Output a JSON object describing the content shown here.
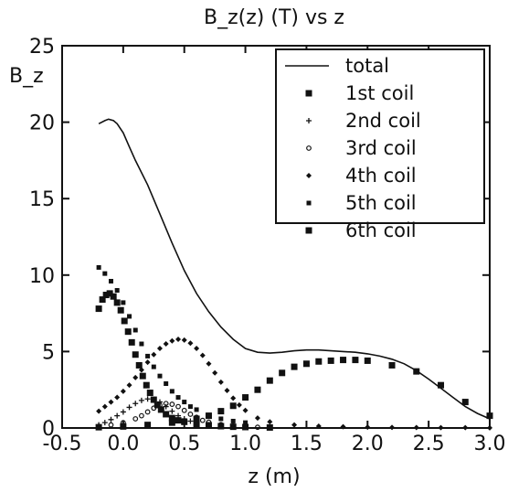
{
  "chart_data": {
    "type": "line",
    "title": "B_z(z) (T) vs z",
    "xlabel": "z (m)",
    "ylabel": "B_z",
    "xlim": [
      -0.5,
      3.0
    ],
    "ylim": [
      0,
      25
    ],
    "xticks": [
      "-0.5",
      "0.0",
      "0.5",
      "1.0",
      "1.5",
      "2.0",
      "2.5",
      "3.0"
    ],
    "yticks": [
      "0",
      "5",
      "10",
      "15",
      "20",
      "25"
    ],
    "xtick_values": [
      -0.5,
      0.0,
      0.5,
      1.0,
      1.5,
      2.0,
      2.5,
      3.0
    ],
    "ytick_values": [
      0,
      5,
      10,
      15,
      20,
      25
    ],
    "legend_position": "top-right",
    "grid": false,
    "series": [
      {
        "name": "total",
        "marker": "line",
        "x": [
          -0.2,
          -0.15,
          -0.12,
          -0.08,
          -0.05,
          0.0,
          0.05,
          0.1,
          0.2,
          0.3,
          0.4,
          0.5,
          0.6,
          0.7,
          0.8,
          0.9,
          1.0,
          1.1,
          1.2,
          1.3,
          1.4,
          1.5,
          1.6,
          1.7,
          1.8,
          1.9,
          2.0,
          2.1,
          2.2,
          2.3,
          2.4,
          2.5,
          2.6,
          2.7,
          2.8,
          2.9,
          3.0
        ],
        "y": [
          19.9,
          20.1,
          20.2,
          20.1,
          19.9,
          19.3,
          18.4,
          17.5,
          15.9,
          14.0,
          12.1,
          10.3,
          8.8,
          7.6,
          6.6,
          5.8,
          5.2,
          4.95,
          4.9,
          4.95,
          5.05,
          5.1,
          5.1,
          5.05,
          5.0,
          4.95,
          4.85,
          4.7,
          4.5,
          4.2,
          3.75,
          3.2,
          2.6,
          2.0,
          1.4,
          0.95,
          0.6
        ]
      },
      {
        "name": "1st coil",
        "marker": "square",
        "x": [
          -0.2,
          -0.17,
          -0.14,
          -0.11,
          -0.08,
          -0.05,
          -0.02,
          0.01,
          0.04,
          0.07,
          0.1,
          0.13,
          0.16,
          0.19,
          0.22,
          0.25,
          0.28,
          0.31,
          0.35,
          0.4,
          0.45,
          0.5,
          0.6,
          0.7,
          0.8,
          0.9,
          1.0,
          1.2
        ],
        "y": [
          7.8,
          8.4,
          8.7,
          8.8,
          8.6,
          8.2,
          7.7,
          7.0,
          6.3,
          5.6,
          4.8,
          4.1,
          3.4,
          2.8,
          2.3,
          1.85,
          1.5,
          1.2,
          0.9,
          0.65,
          0.5,
          0.4,
          0.25,
          0.18,
          0.12,
          0.08,
          0.06,
          0.03
        ]
      },
      {
        "name": "2nd coil",
        "marker": "plus",
        "x": [
          -0.2,
          -0.15,
          -0.1,
          -0.05,
          0.0,
          0.05,
          0.1,
          0.15,
          0.2,
          0.25,
          0.3,
          0.35,
          0.4,
          0.45,
          0.5,
          0.55,
          0.6,
          0.7,
          0.8,
          0.9,
          1.0
        ],
        "y": [
          0.2,
          0.35,
          0.55,
          0.8,
          1.05,
          1.35,
          1.6,
          1.8,
          1.9,
          1.85,
          1.7,
          1.4,
          1.1,
          0.8,
          0.6,
          0.45,
          0.35,
          0.2,
          0.12,
          0.08,
          0.05
        ]
      },
      {
        "name": "3rd coil",
        "marker": "circle",
        "x": [
          -0.2,
          -0.1,
          0.0,
          0.1,
          0.15,
          0.2,
          0.25,
          0.3,
          0.35,
          0.4,
          0.45,
          0.5,
          0.55,
          0.6,
          0.65,
          0.7,
          0.8,
          0.9,
          1.0,
          1.1
        ],
        "y": [
          0.1,
          0.2,
          0.35,
          0.6,
          0.8,
          1.05,
          1.3,
          1.5,
          1.6,
          1.55,
          1.4,
          1.15,
          0.9,
          0.7,
          0.5,
          0.38,
          0.22,
          0.13,
          0.08,
          0.05
        ]
      },
      {
        "name": "4th coil",
        "marker": "diamond",
        "x": [
          -0.2,
          -0.15,
          -0.1,
          -0.05,
          0.0,
          0.05,
          0.1,
          0.15,
          0.2,
          0.25,
          0.3,
          0.35,
          0.4,
          0.45,
          0.5,
          0.55,
          0.6,
          0.65,
          0.7,
          0.75,
          0.8,
          0.85,
          0.9,
          0.95,
          1.0,
          1.1,
          1.2,
          1.4,
          1.6,
          1.8,
          2.0,
          2.2,
          2.4,
          2.6,
          2.8,
          3.0
        ],
        "y": [
          1.1,
          1.4,
          1.7,
          2.0,
          2.4,
          2.8,
          3.3,
          3.8,
          4.3,
          4.8,
          5.2,
          5.5,
          5.7,
          5.8,
          5.75,
          5.55,
          5.2,
          4.75,
          4.2,
          3.6,
          3.0,
          2.45,
          1.95,
          1.5,
          1.15,
          0.65,
          0.4,
          0.2,
          0.12,
          0.08,
          0.05,
          0.04,
          0.03,
          0.02,
          0.02,
          0.01
        ]
      },
      {
        "name": "5th coil",
        "marker": "smallsquare",
        "x": [
          -0.2,
          -0.15,
          -0.1,
          -0.05,
          0.0,
          0.05,
          0.1,
          0.15,
          0.2,
          0.25,
          0.3,
          0.35,
          0.4,
          0.45,
          0.5,
          0.55,
          0.6,
          0.7,
          0.8,
          0.9,
          1.0
        ],
        "y": [
          10.5,
          10.1,
          9.6,
          9.0,
          8.2,
          7.3,
          6.4,
          5.5,
          4.7,
          4.0,
          3.4,
          2.9,
          2.4,
          2.0,
          1.7,
          1.4,
          1.2,
          0.85,
          0.6,
          0.45,
          0.35
        ]
      },
      {
        "name": "6th coil",
        "marker": "square",
        "x": [
          -0.2,
          0.0,
          0.2,
          0.4,
          0.6,
          0.7,
          0.8,
          0.9,
          1.0,
          1.1,
          1.2,
          1.3,
          1.4,
          1.5,
          1.6,
          1.7,
          1.8,
          1.9,
          2.0,
          2.2,
          2.4,
          2.6,
          2.8,
          3.0
        ],
        "y": [
          0.05,
          0.1,
          0.2,
          0.35,
          0.6,
          0.8,
          1.1,
          1.45,
          2.0,
          2.5,
          3.1,
          3.6,
          4.0,
          4.2,
          4.35,
          4.4,
          4.45,
          4.45,
          4.4,
          4.1,
          3.7,
          2.8,
          1.7,
          0.8
        ]
      }
    ]
  }
}
